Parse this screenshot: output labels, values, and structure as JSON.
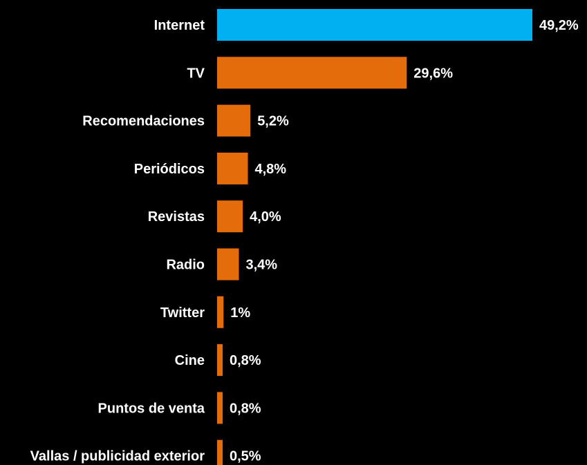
{
  "chart_data": {
    "type": "bar",
    "orientation": "horizontal",
    "categories": [
      "Internet",
      "TV",
      "Recomendaciones",
      "Periódicos",
      "Revistas",
      "Radio",
      "Twitter",
      "Cine",
      "Puntos de venta",
      "Vallas / publicidad exterior"
    ],
    "values": [
      49.2,
      29.6,
      5.2,
      4.8,
      4.0,
      3.4,
      1,
      0.8,
      0.8,
      0.5
    ],
    "value_labels": [
      "49,2%",
      "29,6%",
      "5,2%",
      "4,8%",
      "4,0%",
      "3,4%",
      "1%",
      "0,8%",
      "0,8%",
      "0,5%"
    ],
    "bar_colors": [
      "#00b0f0",
      "#e46c0a",
      "#e46c0a",
      "#e46c0a",
      "#e46c0a",
      "#e46c0a",
      "#e46c0a",
      "#e46c0a",
      "#e46c0a",
      "#e46c0a"
    ],
    "title": "",
    "xlabel": "",
    "ylabel": "",
    "grid": false,
    "axes_visible": false,
    "background": "#000000"
  }
}
